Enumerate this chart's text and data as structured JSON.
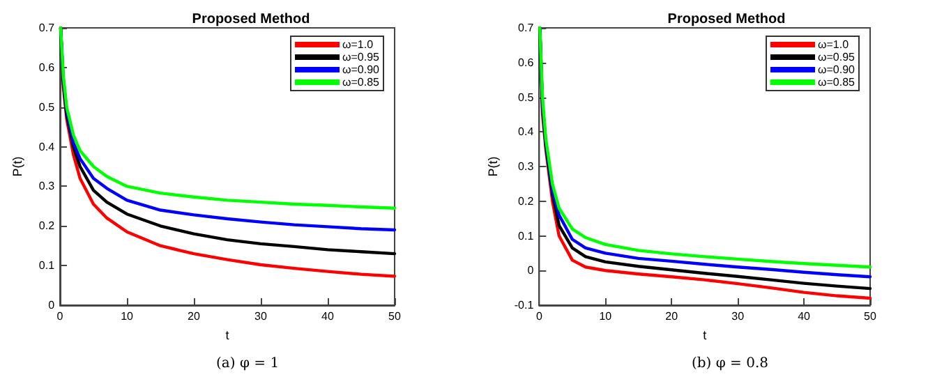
{
  "chart_data": [
    {
      "type": "line",
      "title": "Proposed Method",
      "xlabel": "t",
      "ylabel": "P(t)",
      "xlim": [
        0,
        50
      ],
      "xticks": [
        0,
        10,
        20,
        30,
        40,
        50
      ],
      "ylim": [
        0,
        0.7
      ],
      "yticks": [
        0,
        0.1,
        0.2,
        0.3,
        0.4,
        0.5,
        0.6,
        0.7
      ],
      "grid": false,
      "legend": "top right",
      "marker": "none",
      "line_style": "solid",
      "annotations": [
        "(a) φ = 1"
      ],
      "x": [
        0.1,
        0.5,
        1,
        2,
        3,
        5,
        7,
        10,
        15,
        20,
        25,
        30,
        35,
        40,
        45,
        50
      ],
      "series": [
        {
          "name": "ω=1.0",
          "color": "#ff0000",
          "values": [
            0.7,
            0.55,
            0.47,
            0.38,
            0.32,
            0.255,
            0.22,
            0.185,
            0.15,
            0.13,
            0.115,
            0.102,
            0.093,
            0.085,
            0.078,
            0.073
          ]
        },
        {
          "name": "ω=0.95",
          "color": "#000000",
          "values": [
            0.7,
            0.56,
            0.48,
            0.4,
            0.35,
            0.29,
            0.26,
            0.23,
            0.2,
            0.18,
            0.165,
            0.155,
            0.148,
            0.14,
            0.135,
            0.13
          ]
        },
        {
          "name": "ω=0.90",
          "color": "#0000ff",
          "values": [
            0.7,
            0.57,
            0.49,
            0.41,
            0.37,
            0.32,
            0.295,
            0.265,
            0.24,
            0.228,
            0.218,
            0.21,
            0.203,
            0.198,
            0.193,
            0.19
          ]
        },
        {
          "name": "ω=0.85",
          "color": "#00ff00",
          "values": [
            0.7,
            0.58,
            0.5,
            0.43,
            0.39,
            0.35,
            0.325,
            0.3,
            0.283,
            0.273,
            0.265,
            0.26,
            0.255,
            0.252,
            0.248,
            0.245
          ]
        }
      ]
    },
    {
      "type": "line",
      "title": "Proposed Method",
      "xlabel": "t",
      "ylabel": "P(t)",
      "xlim": [
        0,
        50
      ],
      "xticks": [
        0,
        10,
        20,
        30,
        40,
        50
      ],
      "ylim": [
        -0.1,
        0.7
      ],
      "yticks": [
        -0.1,
        0,
        0.1,
        0.2,
        0.3,
        0.4,
        0.5,
        0.6,
        0.7
      ],
      "grid": false,
      "legend": "top right",
      "marker": "none",
      "line_style": "solid",
      "annotations": [
        "(b) φ = 0.8"
      ],
      "x": [
        0.1,
        0.5,
        1,
        2,
        3,
        5,
        7,
        10,
        15,
        20,
        25,
        30,
        35,
        40,
        45,
        50
      ],
      "series": [
        {
          "name": "ω=1.0",
          "color": "#ff0000",
          "values": [
            0.7,
            0.45,
            0.35,
            0.2,
            0.1,
            0.03,
            0.01,
            0.0,
            -0.01,
            -0.018,
            -0.027,
            -0.038,
            -0.05,
            -0.063,
            -0.073,
            -0.08
          ]
        },
        {
          "name": "ω=0.95",
          "color": "#000000",
          "values": [
            0.7,
            0.47,
            0.36,
            0.22,
            0.13,
            0.065,
            0.04,
            0.025,
            0.012,
            0.002,
            -0.008,
            -0.017,
            -0.027,
            -0.037,
            -0.045,
            -0.052
          ]
        },
        {
          "name": "ω=0.90",
          "color": "#0000ff",
          "values": [
            0.7,
            0.48,
            0.37,
            0.23,
            0.16,
            0.09,
            0.065,
            0.05,
            0.035,
            0.027,
            0.018,
            0.01,
            0.003,
            -0.005,
            -0.012,
            -0.018
          ]
        },
        {
          "name": "ω=0.85",
          "color": "#00ff00",
          "values": [
            0.7,
            0.5,
            0.38,
            0.25,
            0.18,
            0.12,
            0.095,
            0.075,
            0.058,
            0.048,
            0.04,
            0.033,
            0.026,
            0.02,
            0.015,
            0.01
          ]
        }
      ]
    }
  ]
}
